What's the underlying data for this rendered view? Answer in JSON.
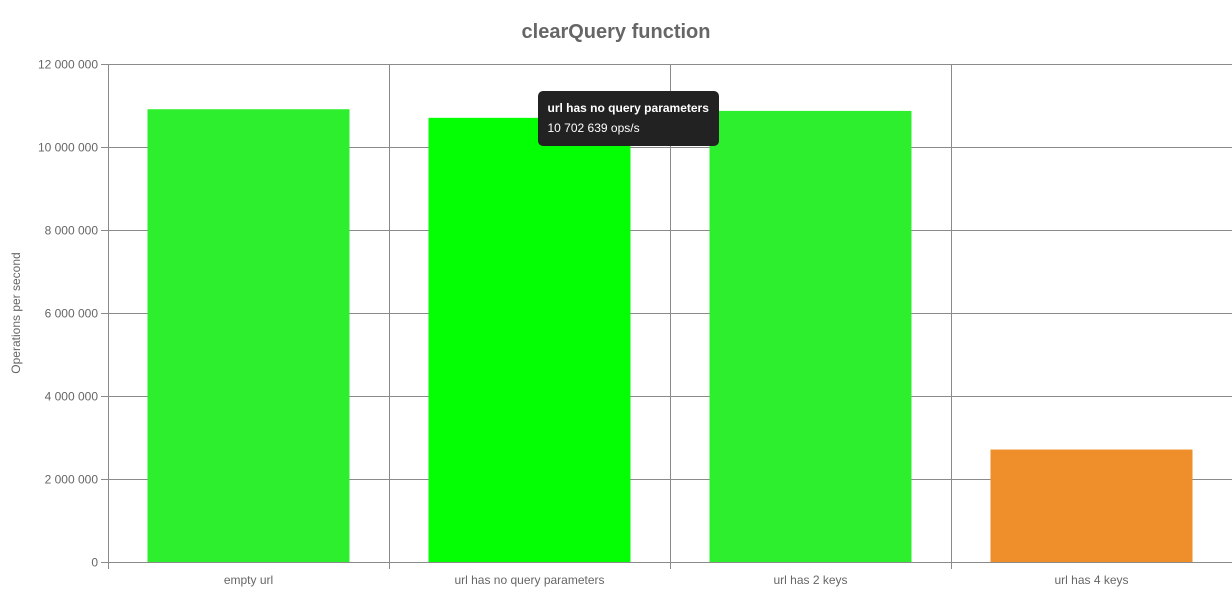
{
  "chart_data": {
    "type": "bar",
    "title": "clearQuery function",
    "xlabel": "",
    "ylabel": "Operations per second",
    "categories": [
      "empty url",
      "url has no query parameters",
      "url has 2 keys",
      "url has 4 keys"
    ],
    "values": [
      10910000,
      10702639,
      10870000,
      2710000
    ],
    "bar_colors": [
      "#2def2d",
      "#04ff04",
      "#2def2d",
      "#ee8f2c"
    ],
    "ylim": [
      0,
      12000000
    ],
    "yticks": [
      0,
      2000000,
      4000000,
      6000000,
      8000000,
      10000000,
      12000000
    ],
    "ytick_labels": [
      "0",
      "2 000 000",
      "4 000 000",
      "6 000 000",
      "8 000 000",
      "10 000 000",
      "12 000 000"
    ],
    "grid": true,
    "legend": "none"
  },
  "tooltip": {
    "title": "url has no query parameters",
    "body": "10 702 639 ops/s",
    "category_index": 1
  }
}
